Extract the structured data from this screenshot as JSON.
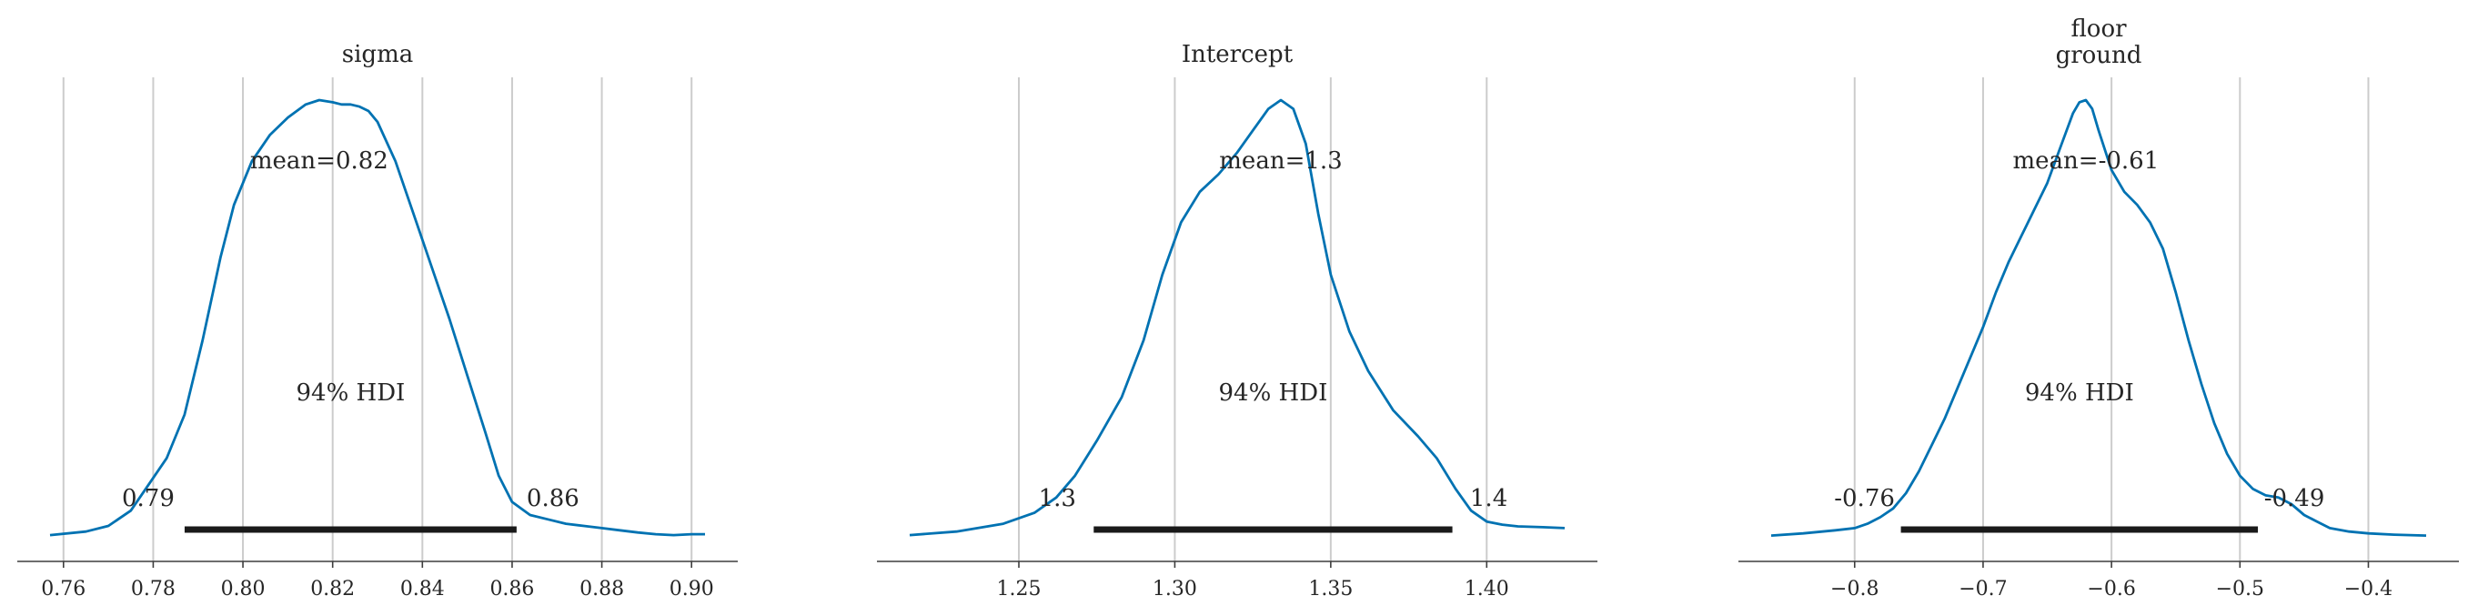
{
  "chart_data": [
    {
      "type": "area",
      "title": [
        "sigma"
      ],
      "mean_label": "mean=0.82",
      "hdi_label": "94% HDI",
      "hdi_lower_label": "0.79",
      "hdi_upper_label": "0.86",
      "hdi": [
        0.787,
        0.861
      ],
      "xlim": [
        0.757,
        0.903
      ],
      "xticks": [
        0.76,
        0.78,
        0.8,
        0.82,
        0.84,
        0.86,
        0.88,
        0.9
      ],
      "xtick_labels": [
        "0.76",
        "0.78",
        "0.80",
        "0.82",
        "0.84",
        "0.86",
        "0.88",
        "0.90"
      ],
      "grid": true,
      "density": {
        "x": [
          0.757,
          0.765,
          0.77,
          0.775,
          0.779,
          0.783,
          0.787,
          0.791,
          0.795,
          0.798,
          0.802,
          0.806,
          0.81,
          0.814,
          0.817,
          0.82,
          0.822,
          0.824,
          0.826,
          0.828,
          0.83,
          0.834,
          0.838,
          0.842,
          0.846,
          0.85,
          0.854,
          0.857,
          0.86,
          0.864,
          0.868,
          0.872,
          0.876,
          0.88,
          0.884,
          0.888,
          0.892,
          0.896,
          0.9,
          0.903
        ],
        "y": [
          0.004,
          0.012,
          0.025,
          0.06,
          0.12,
          0.18,
          0.28,
          0.45,
          0.64,
          0.76,
          0.86,
          0.92,
          0.96,
          0.99,
          1.0,
          0.995,
          0.99,
          0.99,
          0.985,
          0.975,
          0.95,
          0.86,
          0.74,
          0.62,
          0.5,
          0.37,
          0.24,
          0.14,
          0.08,
          0.05,
          0.04,
          0.03,
          0.025,
          0.02,
          0.015,
          0.01,
          0.006,
          0.004,
          0.006,
          0.006
        ]
      }
    },
    {
      "type": "area",
      "title": [
        "Intercept"
      ],
      "mean_label": "mean=1.3",
      "hdi_label": "94% HDI",
      "hdi_lower_label": "1.3",
      "hdi_upper_label": "1.4",
      "hdi": [
        1.274,
        1.389
      ],
      "xlim": [
        1.215,
        1.425
      ],
      "xticks": [
        1.25,
        1.3,
        1.35,
        1.4
      ],
      "xtick_labels": [
        "1.25",
        "1.30",
        "1.35",
        "1.40"
      ],
      "grid": true,
      "density": {
        "x": [
          1.215,
          1.23,
          1.245,
          1.255,
          1.262,
          1.268,
          1.275,
          1.283,
          1.29,
          1.296,
          1.302,
          1.308,
          1.314,
          1.32,
          1.325,
          1.33,
          1.334,
          1.338,
          1.342,
          1.346,
          1.35,
          1.356,
          1.362,
          1.37,
          1.378,
          1.384,
          1.39,
          1.395,
          1.4,
          1.405,
          1.41,
          1.418,
          1.425
        ],
        "y": [
          0.004,
          0.012,
          0.03,
          0.055,
          0.09,
          0.14,
          0.22,
          0.32,
          0.45,
          0.6,
          0.72,
          0.79,
          0.83,
          0.88,
          0.93,
          0.98,
          1.0,
          0.98,
          0.9,
          0.74,
          0.6,
          0.47,
          0.38,
          0.29,
          0.23,
          0.18,
          0.11,
          0.06,
          0.035,
          0.028,
          0.024,
          0.022,
          0.02
        ]
      }
    },
    {
      "type": "area",
      "title": [
        "floor",
        "ground"
      ],
      "mean_label": "mean=-0.61",
      "hdi_label": "94% HDI",
      "hdi_lower_label": "-0.76",
      "hdi_upper_label": "-0.49",
      "hdi": [
        -0.764,
        -0.486
      ],
      "xlim": [
        -0.865,
        -0.355
      ],
      "xticks": [
        -0.8,
        -0.7,
        -0.6,
        -0.5,
        -0.4
      ],
      "xtick_labels": [
        "−0.8",
        "−0.7",
        "−0.6",
        "−0.5",
        "−0.4"
      ],
      "grid": true,
      "density": {
        "x": [
          -0.865,
          -0.84,
          -0.815,
          -0.8,
          -0.79,
          -0.78,
          -0.77,
          -0.76,
          -0.75,
          -0.74,
          -0.73,
          -0.72,
          -0.71,
          -0.7,
          -0.69,
          -0.68,
          -0.67,
          -0.66,
          -0.65,
          -0.64,
          -0.63,
          -0.625,
          -0.62,
          -0.615,
          -0.61,
          -0.6,
          -0.59,
          -0.58,
          -0.57,
          -0.56,
          -0.55,
          -0.54,
          -0.53,
          -0.52,
          -0.51,
          -0.5,
          -0.49,
          -0.48,
          -0.47,
          -0.46,
          -0.45,
          -0.44,
          -0.43,
          -0.415,
          -0.4,
          -0.38,
          -0.355
        ],
        "y": [
          0.003,
          0.008,
          0.015,
          0.02,
          0.03,
          0.045,
          0.065,
          0.1,
          0.15,
          0.21,
          0.27,
          0.34,
          0.41,
          0.48,
          0.56,
          0.63,
          0.69,
          0.75,
          0.81,
          0.89,
          0.97,
          0.995,
          1.0,
          0.98,
          0.93,
          0.84,
          0.79,
          0.76,
          0.72,
          0.66,
          0.56,
          0.45,
          0.35,
          0.26,
          0.19,
          0.14,
          0.11,
          0.095,
          0.09,
          0.075,
          0.05,
          0.035,
          0.02,
          0.012,
          0.008,
          0.005,
          0.003
        ]
      }
    }
  ]
}
